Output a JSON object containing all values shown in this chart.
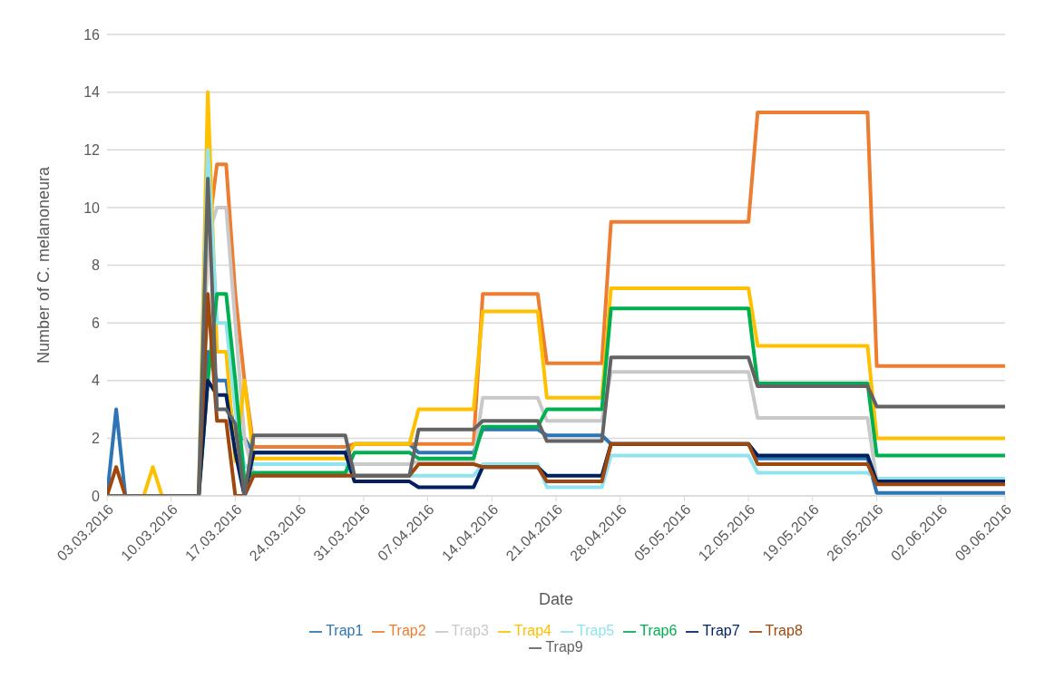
{
  "chart_data": {
    "type": "line",
    "xlabel": "Date",
    "ylabel": "Number of C. melanoneura",
    "x": [
      "2016-03-03",
      "2016-03-04",
      "2016-03-05",
      "2016-03-06",
      "2016-03-07",
      "2016-03-08",
      "2016-03-09",
      "2016-03-10",
      "2016-03-11",
      "2016-03-12",
      "2016-03-13",
      "2016-03-14",
      "2016-03-15",
      "2016-03-16",
      "2016-03-17",
      "2016-03-18",
      "2016-03-19",
      "2016-03-29",
      "2016-03-30",
      "2016-04-05",
      "2016-04-06",
      "2016-04-12",
      "2016-04-13",
      "2016-04-19",
      "2016-04-20",
      "2016-04-26",
      "2016-04-27",
      "2016-05-12",
      "2016-05-13",
      "2016-05-25",
      "2016-05-26",
      "2016-06-09"
    ],
    "series": [
      {
        "name": "Trap1",
        "color": "#2e75b6",
        "values": [
          0,
          3,
          0,
          null,
          null,
          null,
          null,
          null,
          null,
          null,
          0,
          5,
          4,
          4,
          2,
          2,
          1.5,
          1.5,
          1.8,
          1.8,
          1.5,
          1.5,
          2.3,
          2.3,
          2.1,
          2.1,
          1.8,
          1.8,
          1.3,
          1.3,
          0.1,
          0.1
        ]
      },
      {
        "name": "Trap2",
        "color": "#ed7d31",
        "values": [
          null,
          null,
          null,
          null,
          null,
          null,
          null,
          null,
          null,
          null,
          0,
          9,
          11.5,
          11.5,
          7,
          4,
          1.7,
          1.7,
          1.8,
          1.8,
          1.8,
          1.8,
          7,
          7,
          4.6,
          4.6,
          9.5,
          9.5,
          13.3,
          13.3,
          4.5,
          4.5
        ]
      },
      {
        "name": "Trap3",
        "color": "#c9c9c9",
        "values": [
          null,
          null,
          null,
          null,
          null,
          null,
          null,
          null,
          null,
          null,
          0,
          9,
          10,
          10,
          6,
          2,
          0.7,
          0.7,
          1.1,
          1.1,
          1.2,
          1.2,
          3.4,
          3.4,
          2.6,
          2.6,
          4.3,
          4.3,
          2.7,
          2.7,
          0.5,
          0.5
        ]
      },
      {
        "name": "Trap4",
        "color": "#ffc000",
        "values": [
          null,
          null,
          null,
          null,
          0,
          1,
          0,
          null,
          null,
          null,
          0,
          14,
          5,
          5,
          1.2,
          4,
          1.3,
          1.3,
          1.8,
          1.8,
          3,
          3,
          6.4,
          6.4,
          3.4,
          3.4,
          7.2,
          7.2,
          5.2,
          5.2,
          2,
          2
        ]
      },
      {
        "name": "Trap5",
        "color": "#91e3ef",
        "values": [
          null,
          null,
          null,
          null,
          null,
          null,
          null,
          null,
          null,
          null,
          0,
          12,
          6,
          6,
          3,
          1,
          1.1,
          1.1,
          0.7,
          0.7,
          0.7,
          0.7,
          1.1,
          1.1,
          0.3,
          0.3,
          1.4,
          1.4,
          0.8,
          0.8,
          0.6,
          0.6
        ]
      },
      {
        "name": "Trap6",
        "color": "#00b050",
        "values": [
          null,
          null,
          null,
          null,
          null,
          null,
          null,
          null,
          null,
          null,
          0,
          4,
          7,
          7,
          4,
          0.5,
          0.8,
          0.8,
          1.5,
          1.5,
          1.3,
          1.3,
          2.4,
          2.4,
          3,
          3,
          6.5,
          6.5,
          3.9,
          3.9,
          1.4,
          1.4
        ]
      },
      {
        "name": "Trap7",
        "color": "#002060",
        "values": [
          null,
          null,
          null,
          null,
          null,
          null,
          null,
          null,
          null,
          null,
          0,
          4,
          3.5,
          3.5,
          1.5,
          0,
          1.5,
          1.5,
          0.5,
          0.5,
          0.3,
          0.3,
          1,
          1,
          0.7,
          0.7,
          1.8,
          1.8,
          1.4,
          1.4,
          0.5,
          0.5
        ]
      },
      {
        "name": "Trap8",
        "color": "#9e480e",
        "values": [
          0,
          1,
          0,
          null,
          null,
          null,
          null,
          null,
          null,
          null,
          0,
          7,
          2.6,
          2.6,
          0,
          0,
          0.7,
          0.7,
          0.7,
          0.7,
          1.1,
          1.1,
          1,
          1,
          0.5,
          0.5,
          1.8,
          1.8,
          1.1,
          1.1,
          0.4,
          0.4
        ]
      },
      {
        "name": "Trap9",
        "color": "#636363",
        "values": [
          0,
          0,
          0,
          0,
          0,
          0,
          0,
          0,
          0,
          0,
          0,
          11,
          3,
          3,
          2.5,
          0,
          2.1,
          2.1,
          0.7,
          0.7,
          2.3,
          2.3,
          2.6,
          2.6,
          1.9,
          1.9,
          4.8,
          4.8,
          3.8,
          3.8,
          3.1,
          3.1
        ]
      }
    ],
    "xlim": [
      "2016-03-03",
      "2016-06-09"
    ],
    "xticks": [
      {
        "value": "2016-03-03",
        "label": "03.03.2016"
      },
      {
        "value": "2016-03-10",
        "label": "10.03.2016"
      },
      {
        "value": "2016-03-17",
        "label": "17.03.2016"
      },
      {
        "value": "2016-03-24",
        "label": "24.03.2016"
      },
      {
        "value": "2016-03-31",
        "label": "31.03.2016"
      },
      {
        "value": "2016-04-07",
        "label": "07.04.2016"
      },
      {
        "value": "2016-04-14",
        "label": "14.04.2016"
      },
      {
        "value": "2016-04-21",
        "label": "21.04.2016"
      },
      {
        "value": "2016-04-28",
        "label": "28.04.2016"
      },
      {
        "value": "2016-05-05",
        "label": "05.05.2016"
      },
      {
        "value": "2016-05-12",
        "label": "12.05.2016"
      },
      {
        "value": "2016-05-19",
        "label": "19.05.2016"
      },
      {
        "value": "2016-05-26",
        "label": "26.05.2016"
      },
      {
        "value": "2016-06-02",
        "label": "02.06.2016"
      },
      {
        "value": "2016-06-09",
        "label": "09.06.2016"
      }
    ],
    "ylim": [
      0,
      16
    ],
    "yticks": [
      0,
      2,
      4,
      6,
      8,
      10,
      12,
      14,
      16
    ],
    "grid": "y",
    "legend": "bottom",
    "marker": "none",
    "line_style": "solid"
  }
}
